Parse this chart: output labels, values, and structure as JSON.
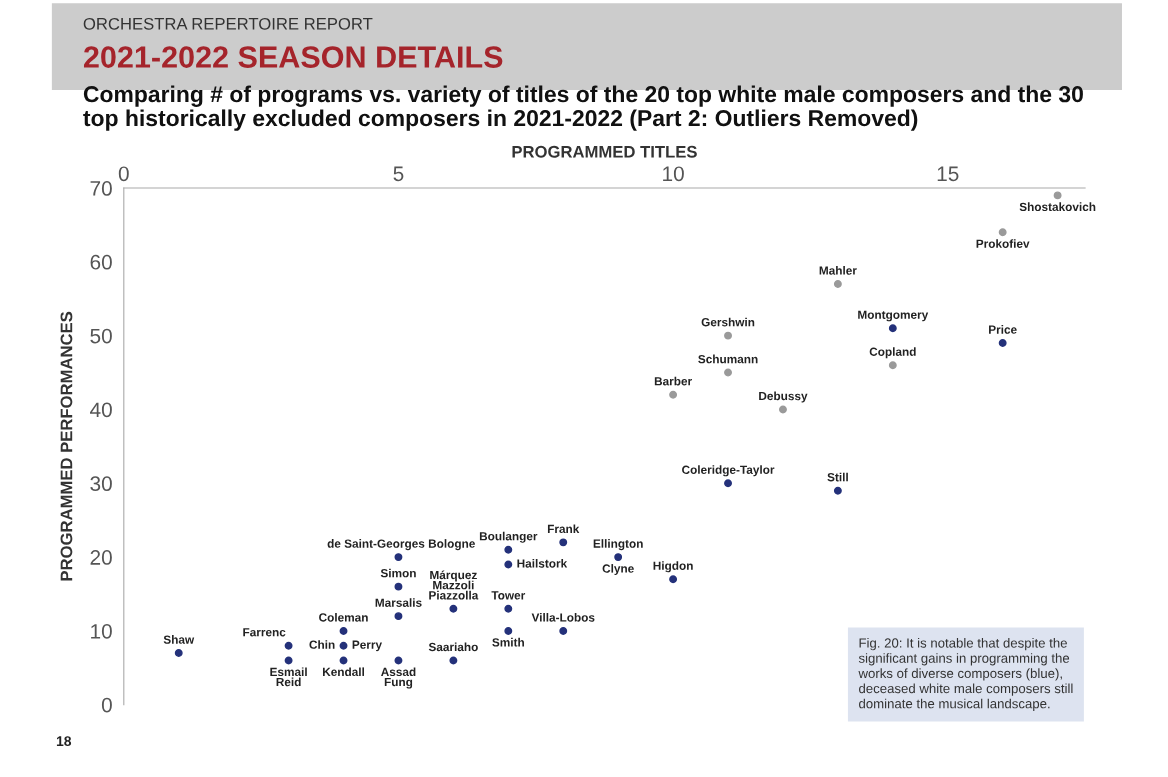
{
  "chart_data": {
    "type": "scatter",
    "title": "2021-2022 SEASON DETAILS",
    "subtitle": "Comparing # of programs vs. variety of titles of the 20 top white male composers and the 30 top historically excluded composers in 2021-2022 (Part 2: Outliers Removed)",
    "xlabel": "PROGRAMMED TITLES",
    "ylabel": "PROGRAMMED PERFORMANCES",
    "xlim": [
      0,
      17.5
    ],
    "xticks": [
      0,
      5,
      10,
      15
    ],
    "ylim": [
      0,
      70
    ],
    "yticks": [
      0,
      10,
      20,
      30,
      40,
      50,
      60,
      70
    ],
    "grid": false,
    "marker": "circle",
    "series": [
      {
        "color": "#24317a",
        "x": [
          1,
          3,
          3,
          4,
          4,
          4,
          5,
          5,
          5,
          5,
          6,
          6,
          7,
          7,
          7,
          7,
          8,
          8,
          9,
          10,
          11,
          13,
          14,
          16
        ],
        "values": [
          7,
          8,
          6,
          10,
          8,
          6,
          6,
          12,
          16,
          20,
          13,
          6,
          21,
          19,
          13,
          10,
          22,
          10,
          20,
          17,
          30,
          29,
          51,
          49
        ]
      },
      {
        "color": "#9a9a9a",
        "x": [
          10,
          11,
          11,
          12,
          13,
          14,
          16,
          17
        ],
        "values": [
          42,
          50,
          45,
          40,
          57,
          46,
          64,
          69
        ]
      }
    ],
    "annotations": [
      {
        "text": "Shaw",
        "x": 1,
        "y": 7
      },
      {
        "text": "Farrenc",
        "x": 3,
        "y": 8
      },
      {
        "text": "Esmail\nReid",
        "x": 3,
        "y": 6
      },
      {
        "text": "Coleman",
        "x": 4,
        "y": 10
      },
      {
        "text": "Chin",
        "x": 4,
        "y": 8
      },
      {
        "text": "Perry",
        "x": 4,
        "y": 8
      },
      {
        "text": "Kendall",
        "x": 4,
        "y": 6
      },
      {
        "text": "Assad\nFung",
        "x": 5,
        "y": 6
      },
      {
        "text": "Marsalis",
        "x": 5,
        "y": 12
      },
      {
        "text": "Simon",
        "x": 5,
        "y": 16
      },
      {
        "text": "de Saint-Georges Bologne",
        "x": 5,
        "y": 20
      },
      {
        "text": "Márquez\nMazzoli\nPiazzolla",
        "x": 6,
        "y": 13
      },
      {
        "text": "Saariaho",
        "x": 6,
        "y": 6
      },
      {
        "text": "Boulanger",
        "x": 7,
        "y": 21
      },
      {
        "text": "Hailstork",
        "x": 7,
        "y": 19
      },
      {
        "text": "Tower",
        "x": 7,
        "y": 13
      },
      {
        "text": "Smith",
        "x": 7,
        "y": 10
      },
      {
        "text": "Frank",
        "x": 8,
        "y": 22
      },
      {
        "text": "Villa-Lobos",
        "x": 8,
        "y": 10
      },
      {
        "text": "Ellington",
        "x": 9,
        "y": 20
      },
      {
        "text": "Clyne",
        "x": 9,
        "y": 20
      },
      {
        "text": "Higdon",
        "x": 10,
        "y": 17
      },
      {
        "text": "Coleridge-Taylor",
        "x": 11,
        "y": 30
      },
      {
        "text": "Still",
        "x": 13,
        "y": 29
      },
      {
        "text": "Barber",
        "x": 10,
        "y": 42
      },
      {
        "text": "Gershwin",
        "x": 11,
        "y": 50
      },
      {
        "text": "Schumann",
        "x": 11,
        "y": 45
      },
      {
        "text": "Debussy",
        "x": 12,
        "y": 40
      },
      {
        "text": "Mahler",
        "x": 13,
        "y": 57
      },
      {
        "text": "Montgomery",
        "x": 14,
        "y": 51
      },
      {
        "text": "Copland",
        "x": 14,
        "y": 46
      },
      {
        "text": "Price",
        "x": 16,
        "y": 49
      },
      {
        "text": "Prokofiev",
        "x": 16,
        "y": 64
      },
      {
        "text": "Shostakovich",
        "x": 17,
        "y": 69
      },
      "ORCHESTRA REPERTOIRE REPORT",
      "Fig. 20: It is notable that despite the significant gains in programming the works of diverse composers (blue), deceased white male composers still dominate the musical landscape.",
      "18"
    ]
  }
}
